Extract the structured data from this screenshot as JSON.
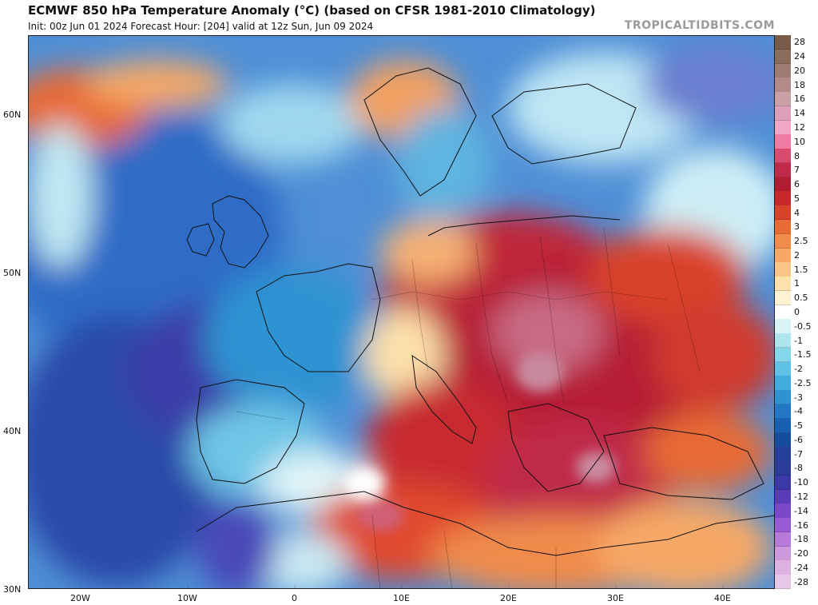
{
  "header": {
    "title": "ECMWF 850 hPa Temperature Anomaly (°C) (based on CFSR 1981-2010 Climatology)",
    "subtitle": "Init: 00z Jun 01 2024   Forecast Hour: [204]   valid at 12z Sun, Jun 09 2024",
    "brand": "TROPICALTIDBITS.COM"
  },
  "map": {
    "lat_labels": [
      "60N",
      "50N",
      "40N",
      "30N"
    ],
    "lon_labels": [
      "20W",
      "10W",
      "0",
      "10E",
      "20E",
      "30E",
      "40E"
    ]
  },
  "colorbar": {
    "labels": [
      "28",
      "24",
      "20",
      "18",
      "16",
      "14",
      "12",
      "10",
      "8",
      "7",
      "6",
      "5",
      "4",
      "3",
      "2.5",
      "2",
      "1.5",
      "1",
      "0.5",
      "0",
      "-0.5",
      "-1",
      "-1.5",
      "-2",
      "-2.5",
      "-3",
      "-4",
      "-5",
      "-6",
      "-7",
      "-8",
      "-10",
      "-12",
      "-14",
      "-16",
      "-18",
      "-20",
      "-24",
      "-28"
    ],
    "colors": [
      "#7a5a48",
      "#8b6b5a",
      "#a07b72",
      "#b38a88",
      "#c9a0a6",
      "#df9fb8",
      "#f2a6c6",
      "#f07aa0",
      "#d94b6e",
      "#c02a48",
      "#b01d30",
      "#c8282a",
      "#d9422a",
      "#e86a35",
      "#f08b4c",
      "#f6a866",
      "#fac486",
      "#fde0aa",
      "#fff2d0",
      "#ffffff",
      "#d8f4f7",
      "#aee6f0",
      "#86d6ea",
      "#5fc2e4",
      "#42acdc",
      "#2f93d2",
      "#2477c4",
      "#1b5fb0",
      "#164c9c",
      "#233f97",
      "#2c3a98",
      "#3c39a6",
      "#5a3cb8",
      "#7a47c8",
      "#9a5ad4",
      "#b87ad8",
      "#cd98dc",
      "#ddb2e0",
      "#e8c8e8"
    ]
  }
}
